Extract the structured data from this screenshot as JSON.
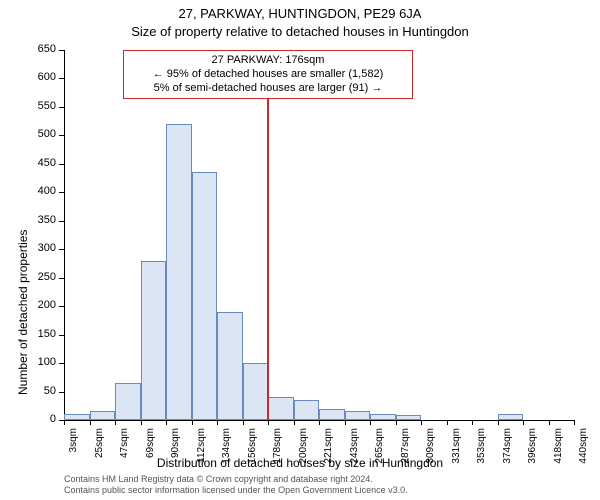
{
  "titles": {
    "line1": "27, PARKWAY, HUNTINGDON, PE29 6JA",
    "line2": "Size of property relative to detached houses in Huntingdon"
  },
  "axes": {
    "ylabel": "Number of detached properties",
    "xlabel": "Distribution of detached houses by size in Huntingdon",
    "ylim": [
      0,
      650
    ],
    "ytick_step": 50,
    "xtick_labels": [
      "3sqm",
      "25sqm",
      "47sqm",
      "69sqm",
      "90sqm",
      "112sqm",
      "134sqm",
      "156sqm",
      "178sqm",
      "200sqm",
      "221sqm",
      "243sqm",
      "265sqm",
      "287sqm",
      "309sqm",
      "331sqm",
      "353sqm",
      "374sqm",
      "396sqm",
      "418sqm",
      "440sqm"
    ]
  },
  "chart": {
    "type": "histogram",
    "bar_fill": "#dbe5f4",
    "bar_stroke": "#6a8bc0",
    "background": "#ffffff",
    "values": [
      10,
      15,
      65,
      280,
      520,
      435,
      190,
      100,
      40,
      35,
      20,
      15,
      10,
      8,
      0,
      0,
      0,
      10,
      0,
      0
    ],
    "ref_line": {
      "bin_index": 8,
      "color": "#cc2a2a"
    }
  },
  "callout": {
    "border_color": "#cc2a2a",
    "lines": [
      "27 PARKWAY: 176sqm",
      "← 95% of detached houses are smaller (1,582)",
      "5% of semi-detached houses are larger (91) →"
    ]
  },
  "footer": {
    "line1": "Contains HM Land Registry data © Crown copyright and database right 2024.",
    "line2": "Contains public sector information licensed under the Open Government Licence v3.0."
  }
}
